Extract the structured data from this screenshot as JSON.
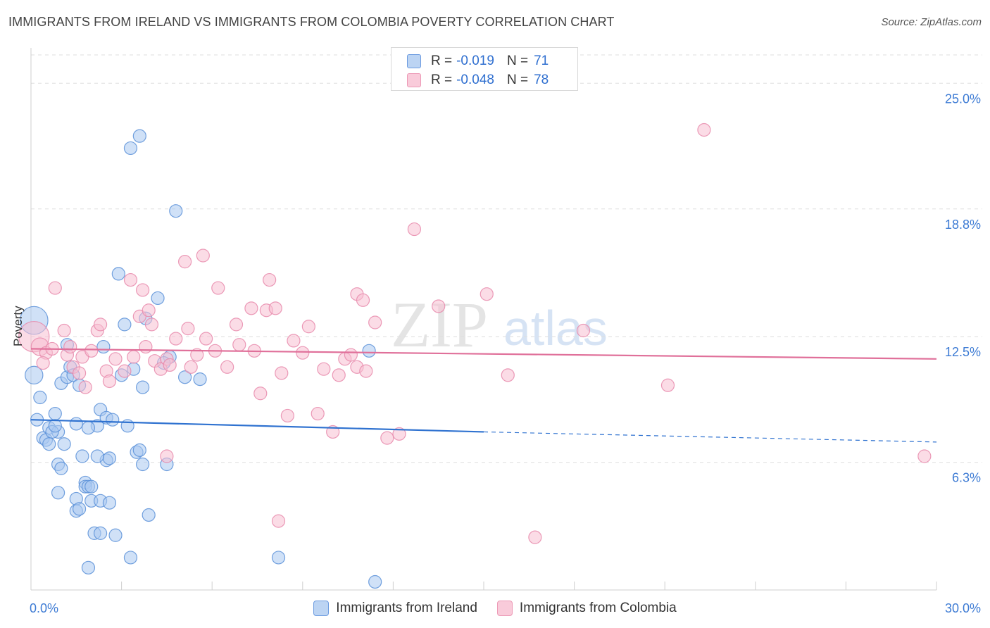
{
  "header": {
    "title": "IMMIGRANTS FROM IRELAND VS IMMIGRANTS FROM COLOMBIA POVERTY CORRELATION CHART",
    "source": "Source: ZipAtlas.com"
  },
  "watermark": {
    "zip": "ZIP",
    "atlas": "atlas"
  },
  "legend_top": {
    "r_label": "R =",
    "n_label": "N =",
    "rows": [
      {
        "r": "-0.019",
        "n": "71"
      },
      {
        "r": "-0.048",
        "n": "78"
      }
    ]
  },
  "colors": {
    "ireland_fill": "#aac8f0",
    "ireland_stroke": "#5b90d8",
    "ireland_line": "#2f72d0",
    "colombia_fill": "#f7c0d2",
    "colombia_stroke": "#e88aab",
    "colombia_line": "#e0709a",
    "grid": "#dedede",
    "tick_label": "#3d7bd4"
  },
  "chart_data": {
    "type": "scatter",
    "title": "IMMIGRANTS FROM IRELAND VS IMMIGRANTS FROM COLOMBIA POVERTY CORRELATION CHART",
    "xlabel": "",
    "ylabel": "Poverty",
    "xlim": [
      0,
      30
    ],
    "ylim": [
      0,
      26.4
    ],
    "x_tick_labels": [
      "0.0%",
      "30.0%"
    ],
    "y_ticks": [
      {
        "value": 6.3,
        "label": "6.3%"
      },
      {
        "value": 12.5,
        "label": "12.5%"
      },
      {
        "value": 18.8,
        "label": "18.8%"
      },
      {
        "value": 25.0,
        "label": "25.0%"
      }
    ],
    "grid": true,
    "legend_position": "top-center",
    "series": [
      {
        "name": "Immigrants from Ireland",
        "r": -0.019,
        "n": 71,
        "trend": {
          "x0": 0,
          "y0": 8.4,
          "x1": 15,
          "y1": 7.8,
          "dashed_to_x": 30,
          "dashed_y": 7.3
        },
        "points": [
          [
            0.1,
            13.3,
            2.2
          ],
          [
            0.1,
            10.6,
            1.4
          ],
          [
            0.2,
            8.4,
            1
          ],
          [
            0.4,
            7.5,
            1
          ],
          [
            0.6,
            8.0,
            1
          ],
          [
            0.3,
            9.5,
            1
          ],
          [
            0.5,
            7.4,
            1
          ],
          [
            0.8,
            8.7,
            1
          ],
          [
            0.9,
            7.8,
            1
          ],
          [
            1.0,
            10.2,
            1
          ],
          [
            1.2,
            10.5,
            1
          ],
          [
            1.3,
            11.0,
            1
          ],
          [
            1.2,
            12.1,
            1
          ],
          [
            1.4,
            10.6,
            1
          ],
          [
            1.5,
            8.2,
            1
          ],
          [
            1.6,
            10.1,
            1
          ],
          [
            0.9,
            6.2,
            1
          ],
          [
            1.0,
            6.0,
            1
          ],
          [
            0.9,
            4.8,
            1
          ],
          [
            1.7,
            6.6,
            1
          ],
          [
            1.5,
            4.5,
            1
          ],
          [
            1.5,
            3.9,
            1
          ],
          [
            1.6,
            4.0,
            1
          ],
          [
            1.8,
            5.3,
            1
          ],
          [
            1.8,
            5.1,
            1
          ],
          [
            1.9,
            5.1,
            1
          ],
          [
            2.0,
            5.1,
            1
          ],
          [
            2.0,
            4.4,
            1
          ],
          [
            2.1,
            2.8,
            1
          ],
          [
            2.3,
            2.8,
            1
          ],
          [
            2.2,
            8.1,
            1
          ],
          [
            2.3,
            8.9,
            1
          ],
          [
            2.5,
            8.5,
            1
          ],
          [
            2.7,
            8.4,
            1
          ],
          [
            2.5,
            6.4,
            1
          ],
          [
            2.6,
            6.5,
            1
          ],
          [
            2.3,
            4.4,
            1
          ],
          [
            2.6,
            4.3,
            1
          ],
          [
            2.8,
            2.7,
            1
          ],
          [
            3.0,
            10.6,
            1
          ],
          [
            3.1,
            13.1,
            1
          ],
          [
            3.4,
            10.9,
            1
          ],
          [
            3.5,
            6.8,
            1
          ],
          [
            3.6,
            6.9,
            1
          ],
          [
            3.7,
            10.0,
            1
          ],
          [
            3.7,
            6.2,
            1
          ],
          [
            3.9,
            3.7,
            1
          ],
          [
            3.3,
            1.6,
            1
          ],
          [
            4.5,
            6.2,
            1
          ],
          [
            4.6,
            11.5,
            1
          ],
          [
            5.1,
            10.5,
            1
          ],
          [
            5.6,
            10.4,
            1
          ],
          [
            2.4,
            12.0,
            1
          ],
          [
            3.2,
            8.1,
            1
          ],
          [
            3.8,
            13.4,
            1
          ],
          [
            2.9,
            15.6,
            1
          ],
          [
            4.2,
            14.4,
            1
          ],
          [
            4.8,
            18.7,
            1
          ],
          [
            3.3,
            21.8,
            1
          ],
          [
            3.6,
            22.4,
            1
          ],
          [
            8.2,
            1.6,
            1
          ],
          [
            11.2,
            11.8,
            1
          ],
          [
            11.4,
            0.4,
            1
          ],
          [
            4.4,
            11.2,
            1
          ],
          [
            0.7,
            7.8,
            1
          ],
          [
            1.9,
            8.0,
            1
          ],
          [
            2.2,
            6.6,
            1
          ],
          [
            0.8,
            8.1,
            1
          ],
          [
            0.6,
            7.2,
            1
          ],
          [
            1.1,
            7.2,
            1
          ],
          [
            1.9,
            1.1,
            1
          ]
        ]
      },
      {
        "name": "Immigrants from Colombia",
        "r": -0.048,
        "n": 78,
        "trend": {
          "x0": 0,
          "y0": 11.9,
          "x1": 30,
          "y1": 11.4
        },
        "points": [
          [
            0.1,
            12.5,
            2.4
          ],
          [
            0.3,
            12.0,
            1.4
          ],
          [
            0.5,
            11.7,
            1
          ],
          [
            0.7,
            11.9,
            1
          ],
          [
            0.8,
            14.9,
            1
          ],
          [
            1.1,
            12.8,
            1
          ],
          [
            1.2,
            11.6,
            1
          ],
          [
            1.4,
            11.0,
            1
          ],
          [
            1.6,
            10.7,
            1
          ],
          [
            1.7,
            11.5,
            1
          ],
          [
            1.8,
            10.0,
            1
          ],
          [
            2.2,
            12.8,
            1
          ],
          [
            2.3,
            13.1,
            1
          ],
          [
            2.5,
            10.8,
            1
          ],
          [
            2.6,
            10.3,
            1
          ],
          [
            2.8,
            11.4,
            1
          ],
          [
            3.1,
            10.8,
            1
          ],
          [
            3.3,
            15.3,
            1
          ],
          [
            3.4,
            11.5,
            1
          ],
          [
            3.6,
            13.5,
            1
          ],
          [
            3.7,
            14.8,
            1
          ],
          [
            3.8,
            12.0,
            1
          ],
          [
            3.9,
            13.8,
            1
          ],
          [
            4.0,
            13.1,
            1
          ],
          [
            4.1,
            11.3,
            1
          ],
          [
            4.3,
            10.9,
            1
          ],
          [
            4.5,
            11.4,
            1
          ],
          [
            4.6,
            11.1,
            1
          ],
          [
            4.8,
            12.4,
            1
          ],
          [
            5.1,
            16.2,
            1
          ],
          [
            5.2,
            12.9,
            1
          ],
          [
            5.3,
            11.0,
            1
          ],
          [
            5.5,
            11.6,
            1
          ],
          [
            5.7,
            16.5,
            1
          ],
          [
            5.8,
            12.4,
            1
          ],
          [
            6.1,
            11.8,
            1
          ],
          [
            6.2,
            14.9,
            1
          ],
          [
            6.5,
            11.0,
            1
          ],
          [
            6.8,
            13.1,
            1
          ],
          [
            6.9,
            12.1,
            1
          ],
          [
            7.3,
            13.9,
            1
          ],
          [
            7.4,
            11.8,
            1
          ],
          [
            7.6,
            9.7,
            1
          ],
          [
            7.8,
            13.8,
            1
          ],
          [
            7.9,
            15.3,
            1
          ],
          [
            8.1,
            13.9,
            1
          ],
          [
            8.3,
            10.7,
            1
          ],
          [
            8.5,
            8.6,
            1
          ],
          [
            8.7,
            12.3,
            1
          ],
          [
            9.0,
            11.7,
            1
          ],
          [
            9.2,
            13.0,
            1
          ],
          [
            9.5,
            8.7,
            1
          ],
          [
            9.7,
            10.9,
            1
          ],
          [
            10.0,
            7.8,
            1
          ],
          [
            10.2,
            10.6,
            1
          ],
          [
            10.4,
            11.4,
            1
          ],
          [
            10.6,
            11.6,
            1
          ],
          [
            10.8,
            11.0,
            1
          ],
          [
            11.1,
            10.8,
            1
          ],
          [
            10.8,
            14.6,
            1
          ],
          [
            11.0,
            14.3,
            1
          ],
          [
            11.4,
            13.2,
            1
          ],
          [
            11.8,
            7.5,
            1
          ],
          [
            12.2,
            7.7,
            1
          ],
          [
            12.7,
            17.8,
            1
          ],
          [
            13.5,
            14.0,
            1
          ],
          [
            15.1,
            14.6,
            1
          ],
          [
            15.8,
            10.6,
            1
          ],
          [
            16.7,
            2.6,
            1
          ],
          [
            18.3,
            12.8,
            1
          ],
          [
            21.1,
            10.1,
            1
          ],
          [
            22.3,
            22.7,
            1
          ],
          [
            29.6,
            6.6,
            1
          ],
          [
            8.2,
            3.4,
            1
          ],
          [
            4.5,
            6.6,
            1
          ],
          [
            2.0,
            11.8,
            1
          ],
          [
            0.4,
            11.2,
            1
          ],
          [
            1.3,
            12.0,
            1
          ]
        ]
      }
    ]
  },
  "legend_bottom": [
    {
      "label": "Immigrants from Ireland"
    },
    {
      "label": "Immigrants from Colombia"
    }
  ]
}
